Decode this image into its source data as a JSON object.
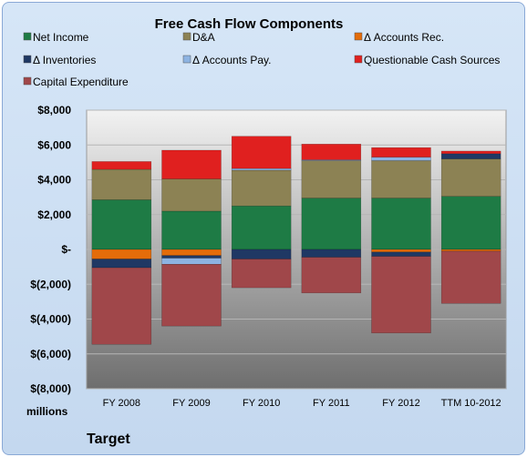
{
  "chart_data": {
    "type": "bar",
    "stacked": true,
    "title": "Free Cash Flow Components",
    "unit_label": "millions",
    "company_label": "Target",
    "categories": [
      "FY 2008",
      "FY 2009",
      "FY 2010",
      "FY 2011",
      "FY 2012",
      "TTM 10-2012"
    ],
    "ylim": [
      -8000,
      8000
    ],
    "yticks": [
      8000,
      6000,
      4000,
      2000,
      0,
      -2000,
      -4000,
      -6000,
      -8000
    ],
    "ytick_labels": [
      "$8,000",
      "$6,000",
      "$4,000",
      "$2,000",
      "$-",
      "$(2,000)",
      "$(4,000)",
      "$(6,000)",
      "$(8,000)"
    ],
    "grid": true,
    "legend_position": "top",
    "series": [
      {
        "name": "Net Income",
        "color": "#1e7b45",
        "values": [
          2850,
          2200,
          2500,
          2950,
          2950,
          3050
        ]
      },
      {
        "name": "D&A",
        "color": "#8c8254",
        "values": [
          1750,
          1850,
          2050,
          2150,
          2150,
          2150
        ]
      },
      {
        "name": "Δ Accounts Rec.",
        "color": "#e46c0a",
        "values": [
          -550,
          -350,
          0,
          0,
          -150,
          -100
        ]
      },
      {
        "name": "Δ Inventories",
        "color": "#1f3864",
        "values": [
          -500,
          -150,
          -550,
          -450,
          -250,
          300
        ]
      },
      {
        "name": "Δ Accounts Pay.",
        "color": "#8db3e2",
        "values": [
          0,
          -350,
          100,
          50,
          200,
          0
        ]
      },
      {
        "name": "Questionable Cash Sources",
        "color": "#e0201f",
        "values": [
          450,
          1650,
          1850,
          900,
          550,
          150
        ]
      },
      {
        "name": "Capital Expenditure",
        "color": "#a0474a",
        "values": [
          -4400,
          -3550,
          -1650,
          -2050,
          -4400,
          -3000
        ]
      }
    ]
  }
}
